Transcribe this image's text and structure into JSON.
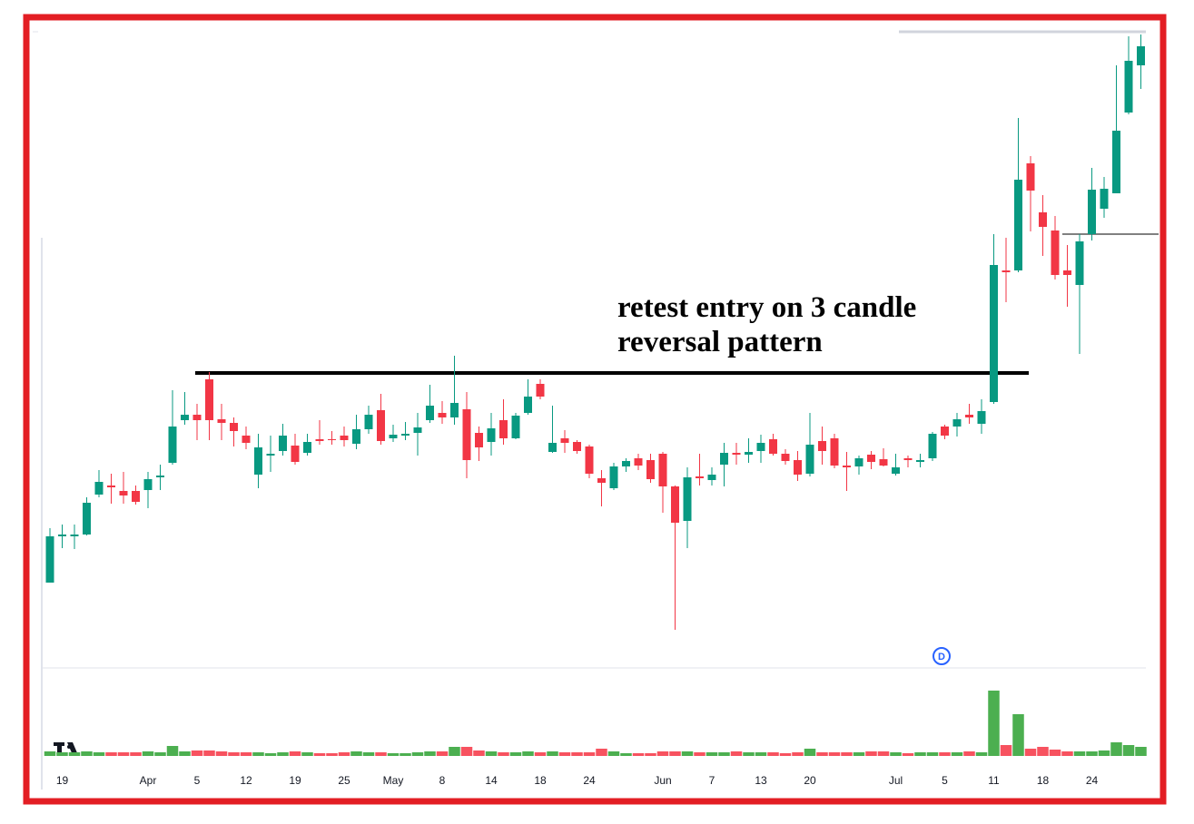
{
  "chart_data": {
    "type": "candlestick",
    "categories": [
      null,
      "19",
      null,
      null,
      null,
      null,
      null,
      null,
      "Apr",
      null,
      null,
      null,
      "5",
      null,
      null,
      null,
      "12",
      null,
      null,
      null,
      "19",
      null,
      null,
      null,
      "25",
      null,
      null,
      null,
      "May",
      null,
      null,
      null,
      "8",
      null,
      null,
      null,
      "14",
      null,
      null,
      null,
      "18",
      null,
      null,
      null,
      "24",
      null,
      null,
      null,
      null,
      null,
      "Jun",
      null,
      null,
      null,
      "7",
      null,
      null,
      null,
      "13",
      null,
      null,
      null,
      "20",
      null,
      null,
      null,
      null,
      null,
      null,
      "Jul",
      null,
      null,
      null,
      "5",
      null,
      null,
      null,
      "11",
      null,
      null,
      null,
      "18",
      null,
      null,
      null,
      "24",
      null,
      null,
      null,
      null
    ],
    "open": [
      108,
      159,
      159,
      161,
      205,
      215,
      209,
      209,
      210,
      224,
      240,
      287,
      293,
      332,
      288,
      284,
      270,
      227,
      248,
      253,
      259,
      251,
      266,
      266,
      270,
      261,
      277,
      298,
      267,
      270,
      273,
      287,
      295,
      290,
      299,
      273,
      263,
      287,
      267,
      295,
      327,
      252,
      267,
      263,
      258,
      223,
      212,
      236,
      245,
      243,
      250,
      214,
      176,
      225,
      221,
      238,
      251,
      249,
      253,
      266,
      250,
      243,
      228,
      264,
      267,
      237,
      236,
      249,
      244,
      228,
      245,
      241,
      245,
      280,
      280,
      293,
      283,
      307,
      452,
      452,
      570,
      516,
      496,
      452,
      436,
      492,
      520,
      537,
      626,
      678
    ],
    "high": [
      168,
      172,
      172,
      202,
      232,
      228,
      230,
      215,
      230,
      238,
      320,
      318,
      305,
      340,
      305,
      290,
      280,
      272,
      270,
      283,
      272,
      272,
      287,
      275,
      280,
      293,
      303,
      316,
      282,
      285,
      295,
      326,
      308,
      358,
      318,
      280,
      295,
      310,
      295,
      332,
      332,
      303,
      276,
      265,
      260,
      232,
      240,
      245,
      250,
      250,
      252,
      215,
      235,
      250,
      235,
      262,
      262,
      267,
      271,
      272,
      255,
      253,
      295,
      280,
      272,
      252,
      248,
      253,
      256,
      250,
      248,
      250,
      274,
      282,
      295,
      305,
      310,
      492,
      488,
      620,
      578,
      535,
      512,
      480,
      492,
      565,
      555,
      678,
      710,
      712
    ],
    "low": [
      108,
      146,
      145,
      160,
      202,
      195,
      195,
      194,
      190,
      210,
      238,
      282,
      265,
      265,
      265,
      258,
      255,
      212,
      230,
      248,
      238,
      248,
      260,
      260,
      258,
      255,
      272,
      260,
      263,
      265,
      248,
      284,
      283,
      282,
      223,
      242,
      248,
      260,
      266,
      293,
      310,
      251,
      251,
      250,
      223,
      192,
      210,
      230,
      232,
      218,
      185,
      56,
      146,
      215,
      215,
      214,
      238,
      240,
      240,
      248,
      238,
      220,
      225,
      238,
      234,
      209,
      227,
      233,
      236,
      226,
      235,
      235,
      242,
      266,
      269,
      283,
      272,
      305,
      417,
      450,
      495,
      468,
      442,
      412,
      360,
      485,
      510,
      537,
      624,
      652
    ],
    "close": [
      159,
      161,
      161,
      196,
      219,
      213,
      204,
      197,
      222,
      226,
      280,
      293,
      287,
      287,
      284,
      275,
      262,
      257,
      250,
      270,
      241,
      263,
      264,
      265,
      265,
      277,
      293,
      264,
      271,
      272,
      279,
      303,
      290,
      306,
      243,
      257,
      278,
      267,
      292,
      313,
      313,
      262,
      262,
      253,
      228,
      218,
      236,
      242,
      237,
      222,
      214,
      174,
      224,
      223,
      227,
      251,
      249,
      252,
      262,
      250,
      242,
      227,
      260,
      253,
      237,
      235,
      245,
      241,
      237,
      235,
      243,
      243,
      272,
      270,
      288,
      290,
      297,
      458,
      450,
      552,
      540,
      500,
      447,
      447,
      484,
      541,
      542,
      606,
      683,
      699
    ],
    "volume": [
      5,
      4,
      4,
      5,
      4,
      4,
      4,
      4,
      5,
      4,
      11,
      5,
      6,
      6,
      5,
      4,
      4,
      4,
      3,
      4,
      5,
      4,
      3,
      3,
      4,
      5,
      4,
      4,
      3,
      3,
      4,
      5,
      5,
      10,
      10,
      6,
      5,
      4,
      4,
      5,
      4,
      5,
      4,
      4,
      4,
      8,
      5,
      3,
      3,
      3,
      5,
      5,
      5,
      4,
      4,
      4,
      5,
      4,
      4,
      4,
      3,
      4,
      8,
      4,
      4,
      4,
      4,
      5,
      5,
      4,
      3,
      4,
      4,
      4,
      4,
      5,
      4,
      72,
      12,
      46,
      8,
      10,
      7,
      5,
      5,
      5,
      6,
      15,
      12,
      10
    ],
    "ylim": [
      0,
      720
    ],
    "volume_ylim": [
      0,
      100
    ],
    "up_color": "#089981",
    "down_color": "#f23645",
    "volume_up_color": "#4caf50",
    "volume_down_color": "#f7525f",
    "levels": [
      339,
      492,
      715
    ],
    "annotation": [
      "retest entry on 3 candle",
      "reversal pattern"
    ],
    "marker": "D"
  }
}
